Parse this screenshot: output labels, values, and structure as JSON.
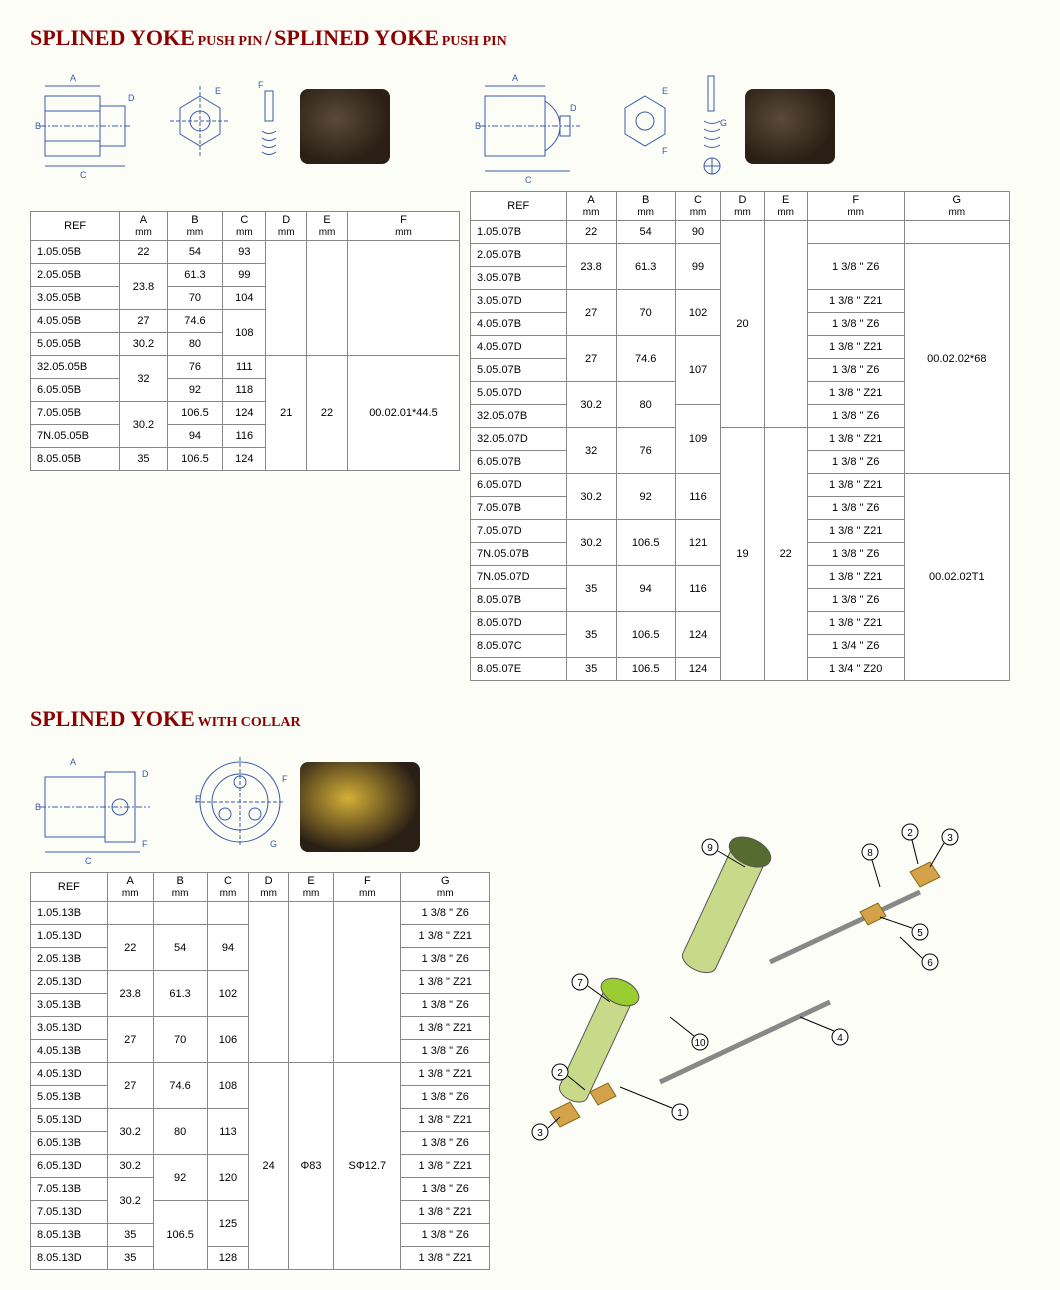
{
  "titles": {
    "t1_big": "SPLINED YOKE",
    "t1_sm": "PUSH PIN",
    "sep": "/",
    "t2_big": "SPLINED YOKE",
    "t2_sm": "PUSH PIN",
    "t3_big": "SPLINED YOKE",
    "t3_sm": "WITH COLLAR"
  },
  "table1": {
    "headers": [
      "REF",
      "A",
      "B",
      "C",
      "D",
      "E",
      "F"
    ],
    "units": [
      "",
      "mm",
      "mm",
      "mm",
      "mm",
      "mm",
      "mm"
    ],
    "rows": [
      [
        "1.05.05B",
        "22",
        "54",
        "93",
        "",
        "",
        ""
      ],
      [
        "2.05.05B",
        "23.8",
        "61.3",
        "99",
        "",
        "",
        ""
      ],
      [
        "3.05.05B",
        "",
        "70",
        "104",
        "",
        "",
        ""
      ],
      [
        "4.05.05B",
        "27",
        "74.6",
        "108",
        "",
        "",
        ""
      ],
      [
        "5.05.05B",
        "30.2",
        "80",
        "",
        "",
        "",
        ""
      ],
      [
        "32.05.05B",
        "32",
        "76",
        "111",
        "21",
        "22",
        "00.02.01*44.5"
      ],
      [
        "6.05.05B",
        "",
        "92",
        "118",
        "",
        "",
        ""
      ],
      [
        "7.05.05B",
        "30.2",
        "106.5",
        "124",
        "",
        "",
        ""
      ],
      [
        "7N.05.05B",
        "",
        "94",
        "116",
        "",
        "",
        ""
      ],
      [
        "8.05.05B",
        "35",
        "106.5",
        "124",
        "",
        "",
        ""
      ]
    ]
  },
  "table2": {
    "headers": [
      "REF",
      "A",
      "B",
      "C",
      "D",
      "E",
      "F",
      "G"
    ],
    "units": [
      "",
      "mm",
      "mm",
      "mm",
      "mm",
      "mm",
      "mm",
      "mm"
    ],
    "rows": [
      [
        "1.05.07B",
        "22",
        "54",
        "90",
        "20",
        "",
        "",
        ""
      ],
      [
        "2.05.07B",
        "23.8",
        "61.3",
        "99",
        "",
        "",
        "1 3/8 \" Z6",
        "00.02.02*68"
      ],
      [
        "3.05.07B",
        "",
        "",
        "",
        "",
        "",
        "",
        ""
      ],
      [
        "3.05.07D",
        "27",
        "70",
        "102",
        "",
        "",
        "1 3/8 \" Z21",
        ""
      ],
      [
        "4.05.07B",
        "",
        "",
        "",
        "",
        "",
        "1 3/8 \" Z6",
        ""
      ],
      [
        "4.05.07D",
        "27",
        "74.6",
        "107",
        "",
        "",
        "1 3/8 \" Z21",
        ""
      ],
      [
        "5.05.07B",
        "",
        "",
        "",
        "",
        "",
        "1 3/8 \" Z6",
        ""
      ],
      [
        "5.05.07D",
        "30.2",
        "80",
        "",
        "",
        "",
        "1 3/8 \" Z21",
        ""
      ],
      [
        "32.05.07B",
        "",
        "",
        "109",
        "",
        "",
        "1 3/8 \"  Z6",
        ""
      ],
      [
        "32.05.07D",
        "32",
        "76",
        "",
        "19",
        "22",
        "1 3/8 \" Z21",
        ""
      ],
      [
        "6.05.07B",
        "",
        "",
        "",
        "",
        "",
        "1 3/8 \"  Z6",
        ""
      ],
      [
        "6.05.07D",
        "30.2",
        "92",
        "116",
        "",
        "",
        "1 3/8 \" Z21",
        "00.02.02T1"
      ],
      [
        "7.05.07B",
        "",
        "",
        "",
        "",
        "",
        "1 3/8 \" Z6",
        ""
      ],
      [
        "7.05.07D",
        "30.2",
        "106.5",
        "121",
        "",
        "",
        "1 3/8 \" Z21",
        ""
      ],
      [
        "7N.05.07B",
        "",
        "",
        "",
        "",
        "",
        "1 3/8 \"  Z6",
        ""
      ],
      [
        "7N.05.07D",
        "35",
        "94",
        "116",
        "",
        "",
        "1 3/8 \" Z21",
        ""
      ],
      [
        "8.05.07B",
        "",
        "",
        "",
        "",
        "",
        "1 3/8 \" Z6",
        ""
      ],
      [
        "8.05.07D",
        "35",
        "106.5",
        "124",
        "",
        "",
        "1 3/8 \" Z21",
        ""
      ],
      [
        "8.05.07C",
        "",
        "",
        "",
        "",
        "",
        "1 3/4 \" Z6",
        ""
      ],
      [
        "8.05.07E",
        "35",
        "106.5",
        "124",
        "",
        "",
        "1 3/4 \" Z20",
        ""
      ]
    ]
  },
  "table3": {
    "headers": [
      "REF",
      "A",
      "B",
      "C",
      "D",
      "E",
      "F",
      "G"
    ],
    "units": [
      "",
      "mm",
      "mm",
      "mm",
      "mm",
      "mm",
      "mm",
      "mm"
    ],
    "rows": [
      [
        "1.05.13B",
        "",
        "",
        "",
        "",
        "",
        "",
        "1 3/8 \" Z6"
      ],
      [
        "1.05.13D",
        "22",
        "54",
        "94",
        "",
        "",
        "",
        "1 3/8 \" Z21"
      ],
      [
        "2.05.13B",
        "",
        "",
        "",
        "",
        "",
        "",
        "1 3/8 \" Z6"
      ],
      [
        "2.05.13D",
        "23.8",
        "61.3",
        "102",
        "",
        "",
        "",
        "1 3/8 \" Z21"
      ],
      [
        "3.05.13B",
        "",
        "",
        "",
        "",
        "",
        "",
        "1 3/8 \" Z6"
      ],
      [
        "3.05.13D",
        "27",
        "70",
        "106",
        "",
        "",
        "",
        "1 3/8 \" Z21"
      ],
      [
        "4.05.13B",
        "",
        "",
        "",
        "",
        "",
        "",
        "1 3/8 \" Z6"
      ],
      [
        "4.05.13D",
        "27",
        "74.6",
        "108",
        "24",
        "Φ83",
        "SΦ12.7",
        "1 3/8 \" Z21"
      ],
      [
        "5.05.13B",
        "",
        "",
        "",
        "",
        "",
        "",
        "1 3/8 \" Z6"
      ],
      [
        "5.05.13D",
        "30.2",
        "80",
        "113",
        "",
        "",
        "",
        "1 3/8 \" Z21"
      ],
      [
        "6.05.13B",
        "",
        "",
        "",
        "",
        "",
        "",
        "1 3/8 \" Z6"
      ],
      [
        "6.05.13D",
        "30.2",
        "92",
        "120",
        "",
        "",
        "",
        "1 3/8 \" Z21"
      ],
      [
        "7.05.13B",
        "30.2",
        "",
        "",
        "",
        "",
        "",
        "1 3/8 \" Z6"
      ],
      [
        "7.05.13D",
        "",
        "106.5",
        "125",
        "",
        "",
        "",
        "1 3/8 \" Z21"
      ],
      [
        "8.05.13B",
        "35",
        "",
        "",
        "",
        "",
        "",
        "1 3/8 \" Z6"
      ],
      [
        "8.05.13D",
        "35",
        "",
        "128",
        "",
        "",
        "",
        "1 3/8 \" Z21"
      ]
    ]
  },
  "diag_labels": {
    "A": "A",
    "B": "B",
    "C": "C",
    "D": "D",
    "E": "E",
    "F": "F",
    "G": "G"
  },
  "assembly_nums": [
    "1",
    "2",
    "3",
    "4",
    "5",
    "6",
    "7",
    "8",
    "9",
    "10"
  ],
  "colors": {
    "title": "#8b0000",
    "line": "#3a5aa8",
    "border": "#888888",
    "bg": "#fdfdf8"
  }
}
